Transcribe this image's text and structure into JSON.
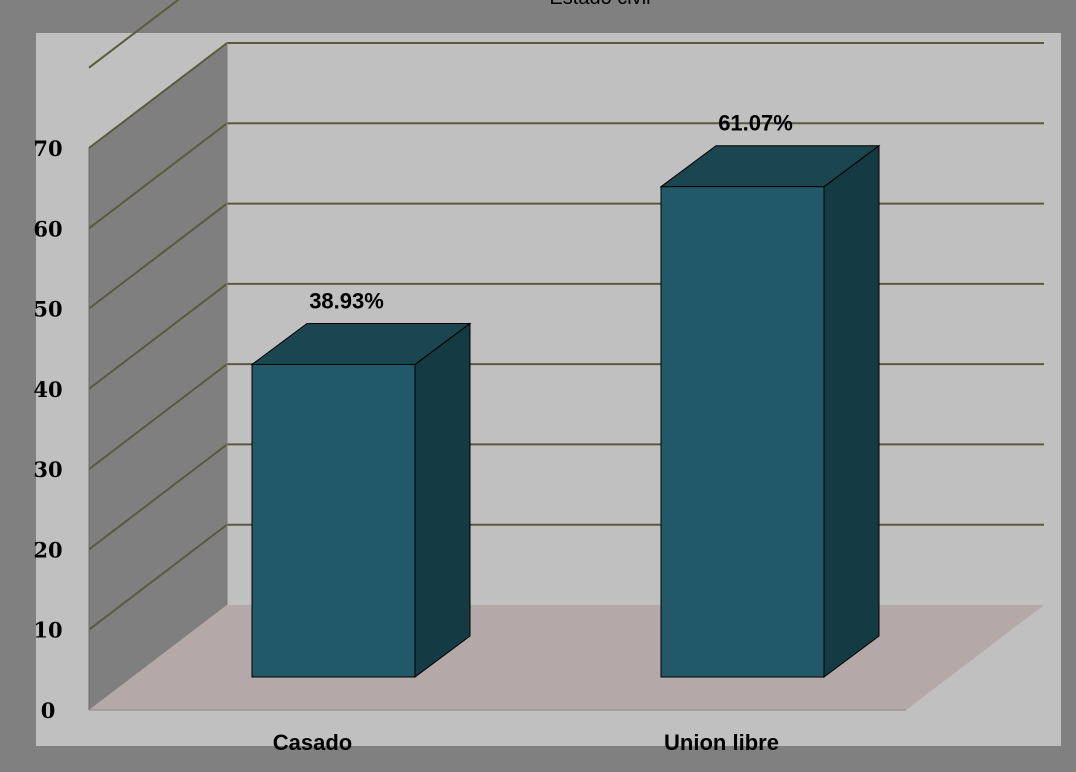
{
  "chart_data": {
    "type": "bar",
    "title": "Estado civil",
    "categories": [
      "Casado",
      "Union libre"
    ],
    "values": [
      38.93,
      61.07
    ],
    "data_labels": [
      "38.93%",
      "61.07%"
    ],
    "ylim": [
      0,
      70
    ],
    "yticks": [
      "0",
      "10",
      "20",
      "30",
      "40",
      "50",
      "60",
      "70"
    ],
    "xlabel": "",
    "ylabel": "",
    "grid": true,
    "three_d": true,
    "colors": {
      "frame": "#808080",
      "plot_background": "#c0c0c0",
      "back_wall": "#c0c0c0",
      "side_wall": "#7f7f7f",
      "floor": "#b5a8a8",
      "gridline": "#5c5a3c",
      "bar_front": "#215968",
      "bar_top": "#1b4650",
      "bar_side": "#143a44"
    }
  }
}
